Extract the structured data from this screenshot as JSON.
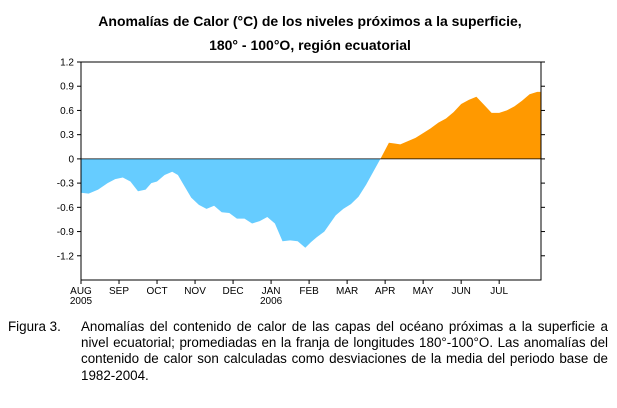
{
  "chart_data": {
    "type": "area",
    "title": "Anomalías de Calor (°C) de los niveles próximos a la superficie,",
    "subtitle": "180° - 100°O, región ecuatorial",
    "ylim": [
      -1.5,
      1.2
    ],
    "yticks": [
      "1.2",
      "0.9",
      "0.6",
      "0.3",
      "0",
      "-0.3",
      "-0.6",
      "-0.9",
      "-1.2"
    ],
    "ytick_values": [
      1.2,
      0.9,
      0.6,
      0.3,
      0,
      -0.3,
      -0.6,
      -0.9,
      -1.2
    ],
    "xticks": [
      {
        "label": "AUG",
        "sublabel": "2005"
      },
      {
        "label": "SEP",
        "sublabel": ""
      },
      {
        "label": "OCT",
        "sublabel": ""
      },
      {
        "label": "NOV",
        "sublabel": ""
      },
      {
        "label": "DEC",
        "sublabel": ""
      },
      {
        "label": "JAN",
        "sublabel": "2006"
      },
      {
        "label": "FEB",
        "sublabel": ""
      },
      {
        "label": "MAR",
        "sublabel": ""
      },
      {
        "label": "APR",
        "sublabel": ""
      },
      {
        "label": "MAY",
        "sublabel": ""
      },
      {
        "label": "JUN",
        "sublabel": ""
      },
      {
        "label": "JUL",
        "sublabel": ""
      }
    ],
    "xlim": [
      0,
      12.1
    ],
    "x": [
      0,
      0.2,
      0.45,
      0.7,
      0.9,
      1.1,
      1.3,
      1.5,
      1.7,
      1.85,
      2.0,
      2.2,
      2.4,
      2.55,
      2.7,
      2.9,
      3.1,
      3.3,
      3.5,
      3.7,
      3.9,
      4.1,
      4.3,
      4.5,
      4.7,
      4.9,
      5.1,
      5.3,
      5.5,
      5.7,
      5.9,
      6.05,
      6.2,
      6.4,
      6.55,
      6.7,
      6.9,
      7.1,
      7.3,
      7.5,
      7.7,
      7.9,
      8.1,
      8.25,
      8.4,
      8.6,
      8.8,
      9.0,
      9.2,
      9.4,
      9.6,
      9.8,
      10.0,
      10.2,
      10.4,
      10.6,
      10.8,
      11.0,
      11.2,
      11.4,
      11.6,
      11.8,
      12.0,
      12.1
    ],
    "values": [
      -0.42,
      -0.43,
      -0.38,
      -0.3,
      -0.25,
      -0.23,
      -0.28,
      -0.4,
      -0.38,
      -0.3,
      -0.28,
      -0.2,
      -0.16,
      -0.2,
      -0.32,
      -0.48,
      -0.57,
      -0.62,
      -0.58,
      -0.66,
      -0.67,
      -0.74,
      -0.74,
      -0.8,
      -0.77,
      -0.72,
      -0.8,
      -1.02,
      -1.01,
      -1.02,
      -1.1,
      -1.03,
      -0.97,
      -0.9,
      -0.8,
      -0.7,
      -0.62,
      -0.56,
      -0.47,
      -0.32,
      -0.15,
      0.02,
      0.2,
      0.19,
      0.18,
      0.22,
      0.26,
      0.32,
      0.38,
      0.45,
      0.5,
      0.58,
      0.68,
      0.73,
      0.77,
      0.67,
      0.57,
      0.57,
      0.6,
      0.65,
      0.72,
      0.8,
      0.83,
      0.83
    ],
    "positive_color": "#ff9900",
    "negative_color": "#66ccff"
  },
  "caption": {
    "label": "Figura 3.",
    "text": "Anomalías del contenido de calor de las capas del océano próximas a la superficie a nivel ecuatorial; promediadas en la franja de longitudes 180°-100°O. Las anomalías  del contenido de calor son calculadas como desviaciones de la media del periodo base de 1982-2004."
  }
}
